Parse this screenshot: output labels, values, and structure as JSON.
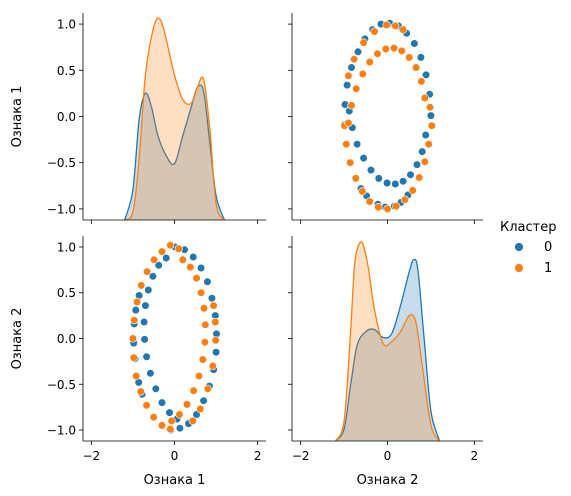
{
  "chart_data": {
    "type": "pairplot",
    "variables": [
      "Ознака 1",
      "Ознака 2"
    ],
    "legend": {
      "title": "Кластер",
      "entries": [
        {
          "label": "0",
          "color": "#1f77b4"
        },
        {
          "label": "1",
          "color": "#ff7f0e"
        }
      ],
      "placement": "right"
    },
    "axes": {
      "x_ticks": [
        -2,
        0,
        2
      ],
      "y_ticks": [
        -1.0,
        -0.5,
        0.0,
        0.5,
        1.0
      ],
      "y_tick_labels": [
        "−1.0",
        "−0.5",
        "0.0",
        "0.5",
        "1.0"
      ],
      "x_tick_labels": [
        "−2",
        "0",
        "2"
      ],
      "xlim": [
        -2.2,
        2.2
      ],
      "ylim": [
        -1.12,
        1.12
      ]
    },
    "diagonal": [
      {
        "variable": "Ознака 1",
        "kind": "kde",
        "series": [
          {
            "name": "0",
            "x": [
              -1.2,
              -1.0,
              -0.85,
              -0.7,
              -0.55,
              -0.4,
              -0.2,
              0.0,
              0.2,
              0.4,
              0.55,
              0.7,
              0.85,
              1.0,
              1.2
            ],
            "density": [
              0.0,
              0.15,
              0.5,
              0.63,
              0.56,
              0.42,
              0.32,
              0.28,
              0.42,
              0.56,
              0.66,
              0.64,
              0.38,
              0.12,
              0.0
            ]
          },
          {
            "name": "1",
            "x": [
              -1.2,
              -1.0,
              -0.85,
              -0.7,
              -0.5,
              -0.35,
              -0.2,
              0.0,
              0.2,
              0.4,
              0.55,
              0.7,
              0.85,
              1.0,
              1.2
            ],
            "density": [
              0.0,
              0.04,
              0.3,
              0.72,
              0.96,
              1.0,
              0.9,
              0.72,
              0.6,
              0.58,
              0.66,
              0.7,
              0.45,
              0.08,
              0.0
            ]
          }
        ]
      },
      {
        "variable": "Ознака 2",
        "kind": "kde",
        "series": [
          {
            "name": "0",
            "x": [
              -1.2,
              -1.0,
              -0.85,
              -0.7,
              -0.5,
              -0.3,
              -0.1,
              0.1,
              0.3,
              0.5,
              0.6,
              0.7,
              0.85,
              1.0,
              1.2
            ],
            "density": [
              0.0,
              0.06,
              0.28,
              0.48,
              0.55,
              0.56,
              0.52,
              0.54,
              0.68,
              0.85,
              0.91,
              0.86,
              0.5,
              0.15,
              0.0
            ]
          },
          {
            "name": "1",
            "x": [
              -1.2,
              -1.0,
              -0.85,
              -0.75,
              -0.6,
              -0.45,
              -0.3,
              -0.1,
              0.1,
              0.3,
              0.5,
              0.65,
              0.8,
              1.0,
              1.2
            ],
            "density": [
              0.0,
              0.1,
              0.55,
              0.9,
              1.0,
              0.88,
              0.66,
              0.49,
              0.5,
              0.55,
              0.63,
              0.6,
              0.38,
              0.08,
              0.0
            ]
          }
        ]
      }
    ],
    "scatter": {
      "x_variable": "Ознака 1",
      "y_variable": "Ознака 2",
      "series": [
        {
          "name": "0",
          "points": [
            [
              0.01,
              1.0
            ],
            [
              0.24,
              0.97
            ],
            [
              0.45,
              0.89
            ],
            [
              0.64,
              0.77
            ],
            [
              0.79,
              0.62
            ],
            [
              0.9,
              0.44
            ],
            [
              0.98,
              0.25
            ],
            [
              1.01,
              0.05
            ],
            [
              1.0,
              -0.15
            ],
            [
              0.94,
              -0.34
            ],
            [
              0.84,
              -0.52
            ],
            [
              0.7,
              -0.68
            ],
            [
              0.53,
              -0.83
            ],
            [
              0.34,
              -0.93
            ],
            [
              0.13,
              -0.98
            ],
            [
              -0.09,
              -1.0
            ],
            [
              -0.2,
              0.88
            ],
            [
              -0.38,
              0.8
            ],
            [
              -0.52,
              0.68
            ],
            [
              -0.63,
              0.53
            ],
            [
              -0.7,
              0.36
            ],
            [
              -0.73,
              0.18
            ],
            [
              -0.72,
              -0.01
            ],
            [
              -0.67,
              -0.2
            ],
            [
              -0.58,
              -0.38
            ],
            [
              -0.45,
              -0.55
            ],
            [
              -0.3,
              -0.7
            ],
            [
              -0.12,
              -0.81
            ],
            [
              0.06,
              -0.88
            ],
            [
              -0.97,
              0.16
            ],
            [
              -0.93,
              0.31
            ],
            [
              -0.85,
              0.47
            ],
            [
              -0.98,
              -0.05
            ],
            [
              -0.95,
              -0.22
            ],
            [
              -0.86,
              -0.48
            ],
            [
              -0.78,
              -0.61
            ]
          ]
        },
        {
          "name": "1",
          "points": [
            [
              -0.1,
              1.02
            ],
            [
              0.1,
              0.98
            ],
            [
              -0.3,
              0.95
            ],
            [
              -0.49,
              0.86
            ],
            [
              -0.66,
              0.73
            ],
            [
              -0.8,
              0.58
            ],
            [
              -0.9,
              0.4
            ],
            [
              -0.97,
              0.2
            ],
            [
              -1.0,
              0.0
            ],
            [
              -0.98,
              -0.21
            ],
            [
              -0.92,
              -0.41
            ],
            [
              -0.81,
              -0.58
            ],
            [
              -0.67,
              -0.73
            ],
            [
              -0.5,
              -0.86
            ],
            [
              -0.3,
              -0.95
            ],
            [
              -0.1,
              -0.99
            ],
            [
              0.2,
              0.86
            ],
            [
              0.38,
              0.78
            ],
            [
              0.53,
              0.66
            ],
            [
              0.64,
              0.5
            ],
            [
              0.71,
              0.33
            ],
            [
              0.74,
              0.15
            ],
            [
              0.73,
              -0.04
            ],
            [
              0.68,
              -0.23
            ],
            [
              0.59,
              -0.41
            ],
            [
              0.46,
              -0.57
            ],
            [
              0.3,
              -0.72
            ],
            [
              0.12,
              -0.83
            ],
            [
              -0.07,
              -0.9
            ],
            [
              0.94,
              0.36
            ],
            [
              0.98,
              0.18
            ],
            [
              0.99,
              -0.02
            ],
            [
              0.92,
              -0.3
            ],
            [
              0.8,
              -0.55
            ],
            [
              0.62,
              -0.77
            ],
            [
              0.44,
              -0.9
            ]
          ]
        }
      ]
    }
  }
}
